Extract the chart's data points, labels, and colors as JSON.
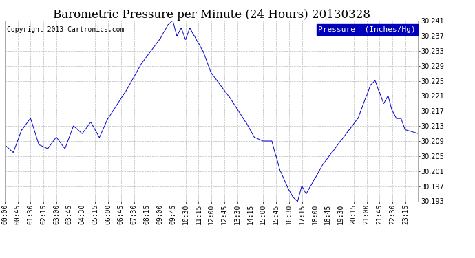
{
  "title": "Barometric Pressure per Minute (24 Hours) 20130328",
  "copyright": "Copyright 2013 Cartronics.com",
  "legend_label": "Pressure  (Inches/Hg)",
  "line_color": "#0000cc",
  "background_color": "#ffffff",
  "grid_color": "#bbbbbb",
  "ylim": [
    30.193,
    30.241
  ],
  "yticks": [
    30.193,
    30.197,
    30.201,
    30.205,
    30.209,
    30.213,
    30.217,
    30.221,
    30.225,
    30.229,
    30.233,
    30.237,
    30.241
  ],
  "xtick_labels": [
    "00:00",
    "00:45",
    "01:30",
    "02:15",
    "03:00",
    "03:45",
    "04:30",
    "05:15",
    "06:00",
    "06:45",
    "07:30",
    "08:15",
    "09:00",
    "09:45",
    "10:30",
    "11:15",
    "12:00",
    "12:45",
    "13:30",
    "14:15",
    "15:00",
    "15:45",
    "16:30",
    "17:15",
    "18:00",
    "18:45",
    "19:30",
    "20:15",
    "21:00",
    "21:45",
    "22:30",
    "23:15"
  ],
  "title_fontsize": 12,
  "tick_fontsize": 7,
  "copyright_fontsize": 7,
  "legend_fontsize": 8
}
